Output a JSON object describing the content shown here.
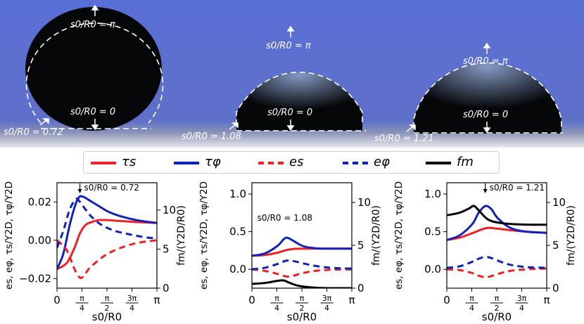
{
  "figure": {
    "photo": {
      "drops": [
        {
          "top_label": "s0/R0 = π",
          "bottom_label": "s0/R0 = 0",
          "contact_label": "s0/R0 = 0.72"
        },
        {
          "top_label": "s0/R0 = π",
          "bottom_label": "s0/R0 = 0",
          "contact_label": "s0/R0 = 1.08"
        },
        {
          "top_label": "s0/R0 = π",
          "bottom_label": "s0/R0 = 0",
          "contact_label": "s0/R0 = 1.21"
        }
      ]
    },
    "legend": [
      {
        "label": "τs",
        "color": "#ee2222",
        "style": "solid"
      },
      {
        "label": "τφ",
        "color": "#1122bb",
        "style": "solid"
      },
      {
        "label": "es",
        "color": "#ee2222",
        "style": "dashed"
      },
      {
        "label": "eφ",
        "color": "#1122bb",
        "style": "dashed"
      },
      {
        "label": "fm",
        "color": "#000000",
        "style": "solid"
      }
    ]
  },
  "chart_data": [
    {
      "type": "line",
      "annotation": "s0/R0 = 0.72",
      "annotation_x": 0.72,
      "xlabel": "s0/R0",
      "ylabel_left": "es, eφ, τs/Y2D, τφ/Y2D",
      "ylabel_right": "fm/(Y2D/R0)",
      "xlim": [
        0,
        3.1416
      ],
      "ylim_left": [
        -0.025,
        0.03
      ],
      "ylim_right": [
        0,
        13.5
      ],
      "yticks_left": [
        -0.02,
        0.0,
        0.02
      ],
      "ytick_labels_left": [
        "−0.02",
        "0.00",
        "0.02"
      ],
      "yticks_right": [
        0,
        5,
        10
      ],
      "ytick_labels_right": [
        "0",
        "5",
        "10"
      ],
      "xticks": [
        0,
        0.7854,
        1.5708,
        2.3562,
        3.1416
      ],
      "xtick_labels": [
        "0",
        "π/4",
        "π/2",
        "3π/4",
        "π"
      ],
      "series": [
        {
          "name": "τs",
          "axis": "left",
          "color": "#ee2222",
          "dash": false,
          "x": [
            0,
            0.3,
            0.55,
            0.72,
            0.9,
            1.1,
            1.3,
            1.6,
            2.0,
            2.5,
            3.14
          ],
          "y": [
            -0.015,
            -0.012,
            -0.004,
            0.0035,
            0.008,
            0.0095,
            0.0105,
            0.0105,
            0.01,
            0.0095,
            0.009
          ]
        },
        {
          "name": "τφ",
          "axis": "left",
          "color": "#1122bb",
          "dash": false,
          "x": [
            0,
            0.2,
            0.4,
            0.6,
            0.72,
            0.85,
            1.0,
            1.3,
            1.6,
            2.0,
            2.5,
            3.14
          ],
          "y": [
            -0.015,
            -0.007,
            0.008,
            0.0195,
            0.0228,
            0.0225,
            0.021,
            0.018,
            0.015,
            0.0125,
            0.0105,
            0.009
          ]
        },
        {
          "name": "es",
          "axis": "left",
          "color": "#ee2222",
          "dash": true,
          "x": [
            0,
            0.3,
            0.55,
            0.72,
            0.85,
            1.0,
            1.3,
            1.6,
            2.0,
            2.5,
            3.14
          ],
          "y": [
            0.0,
            -0.005,
            -0.015,
            -0.0195,
            -0.0185,
            -0.015,
            -0.0105,
            -0.007,
            -0.004,
            -0.0015,
            0.0
          ]
        },
        {
          "name": "eφ",
          "axis": "left",
          "color": "#1122bb",
          "dash": true,
          "x": [
            0,
            0.2,
            0.4,
            0.6,
            0.72,
            0.9,
            1.1,
            1.4,
            1.8,
            2.3,
            2.8,
            3.14
          ],
          "y": [
            -0.004,
            0.005,
            0.016,
            0.0215,
            0.02,
            0.016,
            0.012,
            0.008,
            0.005,
            0.003,
            0.0015,
            0.001
          ]
        }
      ]
    },
    {
      "type": "line",
      "annotation": "s0/R0 = 1.08",
      "annotation_x": 1.08,
      "xlabel": "s0/R0",
      "ylabel_left": "es, eφ, τs/Y2D, τφ/Y2D",
      "ylabel_right": "fm/(Y2D/R0)",
      "xlim": [
        0,
        3.1416
      ],
      "ylim_left": [
        -0.25,
        1.15
      ],
      "ylim_right": [
        0,
        12.3
      ],
      "yticks_left": [
        0.0,
        0.5,
        1.0
      ],
      "ytick_labels_left": [
        "0.0",
        "0.5",
        "1.0"
      ],
      "yticks_right": [
        0,
        5,
        10
      ],
      "ytick_labels_right": [
        "0",
        "5",
        "10"
      ],
      "xticks": [
        0,
        0.7854,
        1.5708,
        2.3562,
        3.1416
      ],
      "xtick_labels": [
        "0",
        "π/4",
        "π/2",
        "3π/4",
        "π"
      ],
      "series": [
        {
          "name": "τs",
          "axis": "left",
          "color": "#ee2222",
          "dash": false,
          "x": [
            0,
            0.4,
            0.8,
            1.08,
            1.3,
            1.6,
            2.0,
            2.5,
            3.14
          ],
          "y": [
            0.18,
            0.19,
            0.22,
            0.255,
            0.27,
            0.275,
            0.275,
            0.275,
            0.275
          ]
        },
        {
          "name": "τφ",
          "axis": "left",
          "color": "#1122bb",
          "dash": false,
          "x": [
            0,
            0.4,
            0.8,
            1.0,
            1.08,
            1.15,
            1.3,
            1.6,
            2.0,
            2.5,
            3.14
          ],
          "y": [
            0.18,
            0.21,
            0.31,
            0.4,
            0.42,
            0.415,
            0.38,
            0.31,
            0.28,
            0.275,
            0.275
          ]
        },
        {
          "name": "es",
          "axis": "left",
          "color": "#ee2222",
          "dash": true,
          "x": [
            0,
            0.4,
            0.8,
            1.08,
            1.3,
            1.6,
            2.0,
            2.5,
            3.14
          ],
          "y": [
            0.0,
            -0.02,
            -0.06,
            -0.095,
            -0.085,
            -0.05,
            -0.02,
            -0.005,
            0.0
          ]
        },
        {
          "name": "eφ",
          "axis": "left",
          "color": "#1122bb",
          "dash": true,
          "x": [
            0,
            0.4,
            0.8,
            1.08,
            1.3,
            1.6,
            2.0,
            2.5,
            3.14
          ],
          "y": [
            0.0,
            0.02,
            0.07,
            0.115,
            0.11,
            0.08,
            0.045,
            0.02,
            0.01
          ]
        },
        {
          "name": "fm",
          "axis": "right",
          "color": "#000000",
          "dash": false,
          "x": [
            0,
            0.4,
            0.8,
            1.0,
            1.2,
            1.5,
            2.0,
            2.5,
            3.14
          ],
          "y": [
            0.5,
            0.6,
            0.85,
            0.9,
            0.6,
            0.25,
            0.05,
            0.0,
            0.0
          ]
        }
      ]
    },
    {
      "type": "line",
      "annotation": "s0/R0 = 1.21",
      "annotation_x": 1.21,
      "xlabel": "s0/R0",
      "ylabel_left": "es, eφ, τs/Y2D, τφ/Y2D",
      "ylabel_right": "fm/(Y2D/R0)",
      "xlim": [
        0,
        3.1416
      ],
      "ylim_left": [
        -0.25,
        1.15
      ],
      "ylim_right": [
        0,
        12.3
      ],
      "yticks_left": [
        0.0,
        0.5,
        1.0
      ],
      "ytick_labels_left": [
        "0.0",
        "0.5",
        "1.0"
      ],
      "yticks_right": [
        0,
        5,
        10
      ],
      "ytick_labels_right": [
        "0",
        "5",
        "10"
      ],
      "xticks": [
        0,
        0.7854,
        1.5708,
        2.3562,
        3.1416
      ],
      "xtick_labels": [
        "0",
        "π/4",
        "π/2",
        "3π/4",
        "π"
      ],
      "series": [
        {
          "name": "τs",
          "axis": "left",
          "color": "#ee2222",
          "dash": false,
          "x": [
            0,
            0.4,
            0.8,
            1.1,
            1.3,
            1.6,
            2.0,
            2.5,
            3.14
          ],
          "y": [
            0.39,
            0.42,
            0.48,
            0.53,
            0.55,
            0.54,
            0.52,
            0.5,
            0.485
          ]
        },
        {
          "name": "τφ",
          "axis": "left",
          "color": "#1122bb",
          "dash": false,
          "x": [
            0,
            0.4,
            0.8,
            1.0,
            1.21,
            1.4,
            1.6,
            2.0,
            2.5,
            3.14
          ],
          "y": [
            0.39,
            0.45,
            0.6,
            0.75,
            0.84,
            0.8,
            0.68,
            0.55,
            0.5,
            0.485
          ]
        },
        {
          "name": "es",
          "axis": "left",
          "color": "#ee2222",
          "dash": true,
          "x": [
            0,
            0.4,
            0.8,
            1.0,
            1.21,
            1.4,
            1.7,
            2.0,
            2.5,
            3.14
          ],
          "y": [
            0.0,
            -0.01,
            -0.05,
            -0.085,
            -0.105,
            -0.09,
            -0.05,
            -0.02,
            0.0,
            0.01
          ]
        },
        {
          "name": "eφ",
          "axis": "left",
          "color": "#1122bb",
          "dash": true,
          "x": [
            0,
            0.4,
            0.8,
            1.0,
            1.21,
            1.4,
            1.7,
            2.0,
            2.5,
            3.14
          ],
          "y": [
            0.02,
            0.04,
            0.1,
            0.14,
            0.165,
            0.15,
            0.1,
            0.06,
            0.03,
            0.02
          ]
        },
        {
          "name": "fm",
          "axis": "right",
          "color": "#000000",
          "dash": false,
          "x": [
            0,
            0.4,
            0.7,
            0.85,
            1.0,
            1.3,
            1.7,
            2.2,
            2.7,
            3.14
          ],
          "y": [
            8.5,
            8.8,
            9.3,
            9.6,
            9.1,
            8.0,
            7.6,
            7.45,
            7.4,
            7.4
          ]
        }
      ]
    }
  ]
}
